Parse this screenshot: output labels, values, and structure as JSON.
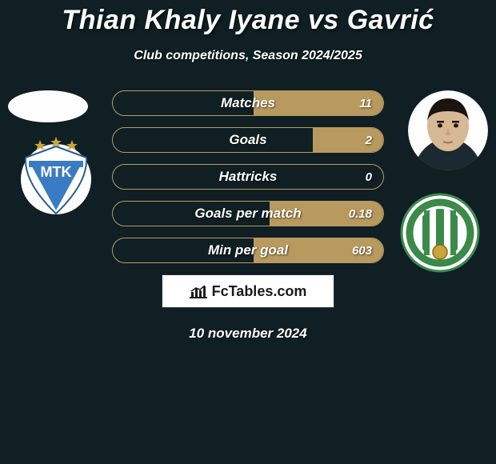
{
  "background_color": "#0f1f24",
  "text_color": "#ffffff",
  "title": "Thian Khaly Iyane vs Gavrić",
  "title_fontsize": 34,
  "title_color": "#ffffff",
  "subtitle": "Club competitions, Season 2024/2025",
  "subtitle_fontsize": 16,
  "subtitle_color": "#ffffff",
  "player_left": {
    "avatar_bg": "#fefefe"
  },
  "player_right": {
    "avatar_bg": "#1a2a30",
    "face_color": "#d9b896",
    "hair_color": "#1a1410"
  },
  "club_left": {
    "bg": "#3a7cc4",
    "accent": "#ffffff",
    "star_color": "#c9a53b"
  },
  "club_right": {
    "bg": "#ffffff",
    "ring": "#3b8a4a",
    "stripe": "#3b8a4a"
  },
  "stats": {
    "row_border_color": "#b89a5e",
    "row_bg": "rgba(0,0,0,0)",
    "left_fill_color": "#b89a5e",
    "right_fill_color": "#b89a5e",
    "label_color": "#ffffff",
    "value_color": "#ffffff",
    "label_fontsize": 17,
    "value_fontsize": 15,
    "rows": [
      {
        "label": "Matches",
        "left": "",
        "right": "11",
        "left_pct": 0,
        "right_pct": 48
      },
      {
        "label": "Goals",
        "left": "",
        "right": "2",
        "left_pct": 0,
        "right_pct": 26
      },
      {
        "label": "Hattricks",
        "left": "",
        "right": "0",
        "left_pct": 0,
        "right_pct": 0
      },
      {
        "label": "Goals per match",
        "left": "",
        "right": "0.18",
        "left_pct": 0,
        "right_pct": 42
      },
      {
        "label": "Min per goal",
        "left": "",
        "right": "603",
        "left_pct": 0,
        "right_pct": 48
      }
    ]
  },
  "brand": {
    "text": "FcTables.com",
    "box_bg": "#ffffff",
    "box_border": "#333333",
    "text_color": "#1a1a1a",
    "icon_color": "#1a1a1a"
  },
  "date": "10 november 2024",
  "date_color": "#ffffff",
  "date_fontsize": 17
}
